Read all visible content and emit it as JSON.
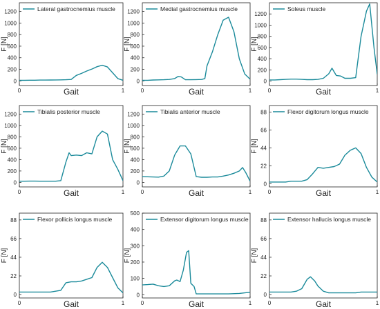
{
  "colors": {
    "line": "#1a8a9a",
    "axis": "#222222"
  },
  "chart_data": [
    {
      "type": "line",
      "title": "",
      "series_name": "Lateral gastrocnemius muscle",
      "xlabel": "Gait",
      "ylabel": "F [N]",
      "xlim": [
        0,
        1
      ],
      "ylim": [
        -80,
        1350
      ],
      "yticks": [
        0,
        200,
        400,
        600,
        800,
        1000,
        1200
      ],
      "xticks": [
        0,
        1
      ],
      "x": [
        0,
        0.05,
        0.1,
        0.15,
        0.2,
        0.25,
        0.3,
        0.35,
        0.4,
        0.45,
        0.5,
        0.55,
        0.6,
        0.65,
        0.7,
        0.75,
        0.8,
        0.85,
        0.9,
        0.95,
        1
      ],
      "y": [
        10,
        10,
        12,
        12,
        14,
        14,
        15,
        16,
        18,
        20,
        25,
        95,
        130,
        170,
        205,
        245,
        270,
        240,
        140,
        40,
        10
      ]
    },
    {
      "type": "line",
      "title": "",
      "series_name": "Medial gastrocnemius muscle",
      "xlabel": "Gait",
      "ylabel": "F [N]",
      "xlim": [
        0,
        1
      ],
      "ylim": [
        -80,
        1350
      ],
      "yticks": [
        0,
        200,
        400,
        600,
        800,
        1000,
        1200
      ],
      "xticks": [
        0,
        1
      ],
      "x": [
        0,
        0.05,
        0.1,
        0.15,
        0.2,
        0.25,
        0.3,
        0.33,
        0.36,
        0.4,
        0.45,
        0.5,
        0.55,
        0.58,
        0.6,
        0.65,
        0.7,
        0.75,
        0.8,
        0.85,
        0.9,
        0.95,
        1
      ],
      "y": [
        10,
        10,
        15,
        18,
        20,
        25,
        40,
        75,
        70,
        20,
        20,
        22,
        25,
        40,
        260,
        500,
        800,
        1050,
        1100,
        850,
        380,
        120,
        30
      ]
    },
    {
      "type": "line",
      "title": "",
      "series_name": "Soleus muscle",
      "xlabel": "Gait",
      "ylabel": "F [N]",
      "xlim": [
        0,
        1
      ],
      "ylim": [
        -80,
        1400
      ],
      "yticks": [
        0,
        200,
        400,
        600,
        800,
        1000,
        1200
      ],
      "xticks": [
        0,
        1
      ],
      "x": [
        0,
        0.05,
        0.1,
        0.15,
        0.2,
        0.25,
        0.3,
        0.35,
        0.4,
        0.45,
        0.5,
        0.55,
        0.58,
        0.62,
        0.66,
        0.7,
        0.75,
        0.8,
        0.85,
        0.9,
        0.93,
        0.97,
        1
      ],
      "y": [
        20,
        20,
        25,
        30,
        35,
        35,
        30,
        25,
        25,
        30,
        50,
        130,
        230,
        100,
        90,
        50,
        50,
        60,
        800,
        1250,
        1380,
        600,
        120
      ]
    },
    {
      "type": "line",
      "title": "",
      "series_name": "Tibialis posterior muscle",
      "xlabel": "Gait",
      "ylabel": "F [N]",
      "xlim": [
        0,
        1
      ],
      "ylim": [
        -80,
        1350
      ],
      "yticks": [
        0,
        200,
        400,
        600,
        800,
        1000,
        1200
      ],
      "xticks": [
        0,
        1
      ],
      "x": [
        0,
        0.05,
        0.1,
        0.15,
        0.2,
        0.25,
        0.3,
        0.35,
        0.4,
        0.45,
        0.48,
        0.5,
        0.55,
        0.6,
        0.65,
        0.7,
        0.75,
        0.8,
        0.85,
        0.9,
        0.95,
        1
      ],
      "y": [
        20,
        20,
        22,
        22,
        20,
        20,
        20,
        20,
        30,
        360,
        520,
        470,
        480,
        470,
        520,
        500,
        800,
        900,
        850,
        400,
        230,
        30
      ]
    },
    {
      "type": "line",
      "title": "",
      "series_name": "Tibialis anterior muscle",
      "xlabel": "Gait",
      "ylabel": "F [N]",
      "xlim": [
        0,
        1
      ],
      "ylim": [
        -80,
        1350
      ],
      "yticks": [
        0,
        200,
        400,
        600,
        800,
        1000,
        1200
      ],
      "xticks": [
        0,
        1
      ],
      "x": [
        0,
        0.05,
        0.1,
        0.15,
        0.2,
        0.25,
        0.3,
        0.35,
        0.4,
        0.45,
        0.5,
        0.55,
        0.6,
        0.65,
        0.7,
        0.75,
        0.8,
        0.85,
        0.9,
        0.93,
        0.96,
        1
      ],
      "y": [
        100,
        98,
        95,
        92,
        110,
        200,
        480,
        640,
        640,
        500,
        100,
        90,
        90,
        95,
        95,
        110,
        130,
        160,
        200,
        260,
        170,
        20
      ]
    },
    {
      "type": "line",
      "title": "",
      "series_name": "Flexor digitorum longus muscle",
      "xlabel": "Gait",
      "ylabel": "F [N]",
      "xlim": [
        0,
        1
      ],
      "ylim": [
        -4,
        96
      ],
      "yticks": [
        0,
        22,
        44,
        66,
        88
      ],
      "xticks": [
        0,
        1
      ],
      "x": [
        0,
        0.05,
        0.1,
        0.15,
        0.2,
        0.25,
        0.3,
        0.35,
        0.4,
        0.45,
        0.5,
        0.55,
        0.6,
        0.65,
        0.7,
        0.75,
        0.8,
        0.85,
        0.9,
        0.95,
        1
      ],
      "y": [
        2,
        2,
        2,
        2,
        3,
        3,
        3,
        5,
        12,
        20,
        19,
        20,
        21,
        24,
        35,
        41,
        44,
        37,
        20,
        8,
        2
      ]
    },
    {
      "type": "line",
      "title": "",
      "series_name": "Flexor pollicis longus muscle",
      "xlabel": "Gait",
      "ylabel": "F [N]",
      "xlim": [
        0,
        1
      ],
      "ylim": [
        -4,
        96
      ],
      "yticks": [
        0,
        22,
        44,
        66,
        88
      ],
      "xticks": [
        0,
        1
      ],
      "x": [
        0,
        0.05,
        0.1,
        0.15,
        0.2,
        0.25,
        0.3,
        0.35,
        0.4,
        0.45,
        0.5,
        0.55,
        0.6,
        0.65,
        0.7,
        0.75,
        0.8,
        0.85,
        0.9,
        0.95,
        1
      ],
      "y": [
        3,
        3,
        3,
        3,
        3,
        3,
        3,
        4,
        5,
        14,
        15,
        15,
        16,
        18,
        20,
        32,
        38,
        32,
        20,
        8,
        2
      ]
    },
    {
      "type": "line",
      "title": "",
      "series_name": "Extensor digitorum longus muscle",
      "xlabel": "Gait",
      "ylabel": "F [N]",
      "xlim": [
        0,
        1
      ],
      "ylim": [
        -20,
        500
      ],
      "yticks": [
        0,
        100,
        200,
        300,
        400,
        500
      ],
      "xticks": [
        0,
        1
      ],
      "x": [
        0,
        0.05,
        0.1,
        0.15,
        0.2,
        0.25,
        0.3,
        0.32,
        0.35,
        0.38,
        0.41,
        0.43,
        0.45,
        0.48,
        0.5,
        0.55,
        0.6,
        0.7,
        0.8,
        0.9,
        1
      ],
      "y": [
        60,
        62,
        65,
        55,
        50,
        55,
        85,
        90,
        80,
        150,
        260,
        270,
        70,
        50,
        5,
        5,
        5,
        5,
        5,
        8,
        15
      ]
    },
    {
      "type": "line",
      "title": "",
      "series_name": "Extensor hallucis longus muscle",
      "xlabel": "Gait",
      "ylabel": "F [N]",
      "xlim": [
        0,
        1
      ],
      "ylim": [
        -4,
        96
      ],
      "yticks": [
        0,
        22,
        44,
        66,
        88
      ],
      "xticks": [
        0,
        1
      ],
      "x": [
        0,
        0.05,
        0.1,
        0.15,
        0.2,
        0.25,
        0.3,
        0.35,
        0.38,
        0.42,
        0.45,
        0.5,
        0.55,
        0.6,
        0.65,
        0.7,
        0.75,
        0.8,
        0.85,
        0.9,
        0.95,
        1
      ],
      "y": [
        3,
        3,
        3,
        3,
        3,
        4,
        7,
        18,
        21,
        16,
        10,
        4,
        2,
        2,
        2,
        2,
        2,
        2,
        3,
        3,
        3,
        3
      ]
    }
  ]
}
